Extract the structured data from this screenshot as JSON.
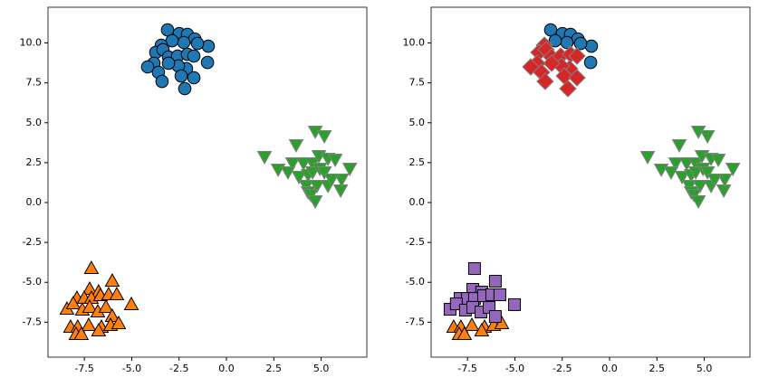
{
  "chart_data": [
    {
      "type": "scatter",
      "xlim": [
        -9.42,
        7.41
      ],
      "ylim": [
        -9.69,
        12.24
      ],
      "xticks": [
        -7.5,
        {
          "value": -5,
          "label": "-5.0"
        },
        -2.5,
        {
          "value": 0,
          "label": "0.0"
        },
        2.5,
        {
          "value": 5,
          "label": "5.0"
        }
      ],
      "yticks": [
        -7.5,
        {
          "value": -5,
          "label": "-5.0"
        },
        -2.5,
        {
          "value": 0,
          "label": "0.0"
        },
        2.5,
        {
          "value": 5,
          "label": "5.0"
        },
        7.5,
        {
          "value": 10,
          "label": "10.0"
        }
      ],
      "series": [
        {
          "marker": "o",
          "color": "#1f77b4",
          "edgecolor": "#000000",
          "x": [
            -3.11,
            -2.49,
            -2.06,
            -1.67,
            -0.96,
            -1.53,
            -2.25,
            -2.87,
            -1.0,
            -3.44,
            -3.73,
            -3.35,
            -3.06,
            -2.58,
            -2.06,
            -1.72,
            -2.11,
            -2.54,
            -3.06,
            -3.83,
            -4.16,
            -3.59,
            -3.4,
            -2.39,
            -1.72,
            -2.2
          ],
          "y": [
            10.82,
            10.59,
            10.54,
            10.25,
            9.8,
            9.97,
            10.03,
            10.14,
            8.78,
            9.86,
            9.41,
            9.58,
            9.12,
            9.18,
            9.29,
            9.18,
            8.39,
            8.56,
            8.73,
            8.73,
            8.5,
            8.16,
            7.59,
            7.93,
            7.82,
            7.14
          ]
        },
        {
          "marker": "^",
          "color": "#ff7f0e",
          "edgecolor": "#000000",
          "x": [
            -7.13,
            -6.03,
            -7.22,
            -6.75,
            -7.89,
            -7.51,
            -7.13,
            -6.65,
            -6.22,
            -5.79,
            -5.02,
            -8.42,
            -8.09,
            -7.61,
            -7.22,
            -6.79,
            -6.36,
            -6.03,
            -8.23,
            -7.85,
            -7.27,
            -6.6,
            -6.12,
            -5.69,
            -7.94,
            -7.66,
            -6.75
          ],
          "y": [
            -4.14,
            -4.93,
            -5.44,
            -5.61,
            -6.01,
            -6.01,
            -6.01,
            -5.84,
            -5.78,
            -5.78,
            -6.4,
            -6.69,
            -6.35,
            -6.74,
            -6.57,
            -6.86,
            -6.57,
            -7.14,
            -7.82,
            -7.82,
            -7.71,
            -7.82,
            -7.71,
            -7.59,
            -8.27,
            -8.27,
            -8.05
          ]
        },
        {
          "marker": "v",
          "color": "#2ca02c",
          "edgecolor": "#808080",
          "x": [
            2.01,
            3.68,
            4.69,
            5.17,
            3.49,
            4.07,
            4.55,
            4.88,
            5.36,
            5.74,
            6.51,
            2.73,
            3.25,
            3.83,
            4.31,
            4.55,
            4.93,
            5.17,
            4.21,
            4.78,
            5.36,
            6.03,
            4.31,
            4.45,
            4.69,
            6.08,
            5.55
          ],
          "y": [
            2.89,
            3.63,
            4.48,
            4.19,
            2.49,
            2.49,
            2.49,
            2.95,
            2.78,
            2.72,
            2.15,
            2.1,
            1.93,
            1.64,
            1.76,
            1.93,
            2.15,
            1.93,
            1.08,
            1.08,
            1.08,
            0.79,
            0.68,
            0.51,
            0.11,
            1.47,
            1.47
          ]
        }
      ]
    },
    {
      "type": "scatter",
      "xlim": [
        -9.42,
        7.41
      ],
      "ylim": [
        -9.69,
        12.24
      ],
      "xticks": [
        -7.5,
        {
          "value": -5,
          "label": "-5.0"
        },
        -2.5,
        {
          "value": 0,
          "label": "0.0"
        },
        2.5,
        {
          "value": 5,
          "label": "5.0"
        }
      ],
      "yticks": [
        -7.5,
        {
          "value": -5,
          "label": "-5.0"
        },
        -2.5,
        {
          "value": 0,
          "label": "0.0"
        },
        2.5,
        {
          "value": 5,
          "label": "5.0"
        },
        7.5,
        {
          "value": 10,
          "label": "10.0"
        }
      ],
      "series": [
        {
          "marker": "o",
          "color": "#1f77b4",
          "edgecolor": "#000000",
          "x": [
            -3.11,
            -2.49,
            -2.06,
            -1.67,
            -0.96,
            -1.53,
            -2.25,
            -2.87,
            -1.0
          ],
          "y": [
            10.82,
            10.59,
            10.54,
            10.25,
            9.8,
            9.97,
            10.03,
            10.14,
            8.78
          ]
        },
        {
          "marker": "D",
          "color": "#d62728",
          "edgecolor": "#808080",
          "x": [
            -3.44,
            -3.73,
            -3.35,
            -3.06,
            -2.58,
            -2.06,
            -1.72,
            -2.11,
            -2.54,
            -3.06,
            -3.83,
            -4.16,
            -3.59,
            -3.4,
            -2.39,
            -1.72,
            -2.2
          ],
          "y": [
            9.86,
            9.41,
            9.58,
            9.12,
            9.18,
            9.29,
            9.18,
            8.39,
            8.56,
            8.73,
            8.73,
            8.5,
            8.16,
            7.59,
            7.93,
            7.82,
            7.14
          ]
        },
        {
          "marker": "v",
          "color": "#2ca02c",
          "edgecolor": "#808080",
          "x": [
            2.01,
            3.68,
            4.69,
            5.17,
            3.49,
            4.07,
            4.55,
            4.88,
            5.36,
            5.74,
            6.51,
            2.73,
            3.25,
            3.83,
            4.31,
            4.55,
            4.93,
            5.17,
            4.21,
            4.78,
            5.36,
            6.03,
            4.31,
            4.45,
            4.69,
            6.08,
            5.55
          ],
          "y": [
            2.89,
            3.63,
            4.48,
            4.19,
            2.49,
            2.49,
            2.49,
            2.95,
            2.78,
            2.72,
            2.15,
            2.1,
            1.93,
            1.64,
            1.76,
            1.93,
            2.15,
            1.93,
            1.08,
            1.08,
            1.08,
            0.79,
            0.68,
            0.51,
            0.11,
            1.47,
            1.47
          ]
        },
        {
          "marker": "^",
          "color": "#ff7f0e",
          "edgecolor": "#000000",
          "x": [
            -8.23,
            -7.85,
            -7.27,
            -6.6,
            -6.12,
            -5.69,
            -7.94,
            -7.66,
            -6.75
          ],
          "y": [
            -7.82,
            -7.82,
            -7.71,
            -7.82,
            -7.71,
            -7.59,
            -8.27,
            -8.27,
            -8.05
          ]
        },
        {
          "marker": "s",
          "color": "#9467bd",
          "edgecolor": "#000000",
          "x": [
            -7.13,
            -6.03,
            -7.22,
            -6.75,
            -7.89,
            -7.51,
            -7.13,
            -6.65,
            -6.22,
            -5.79,
            -5.02,
            -8.42,
            -8.09,
            -7.61,
            -7.22,
            -6.79,
            -6.36,
            -6.03
          ],
          "y": [
            -4.14,
            -4.93,
            -5.44,
            -5.61,
            -6.01,
            -6.01,
            -6.01,
            -5.84,
            -5.78,
            -5.78,
            -6.4,
            -6.69,
            -6.35,
            -6.74,
            -6.57,
            -6.86,
            -6.57,
            -7.14
          ]
        }
      ]
    }
  ]
}
